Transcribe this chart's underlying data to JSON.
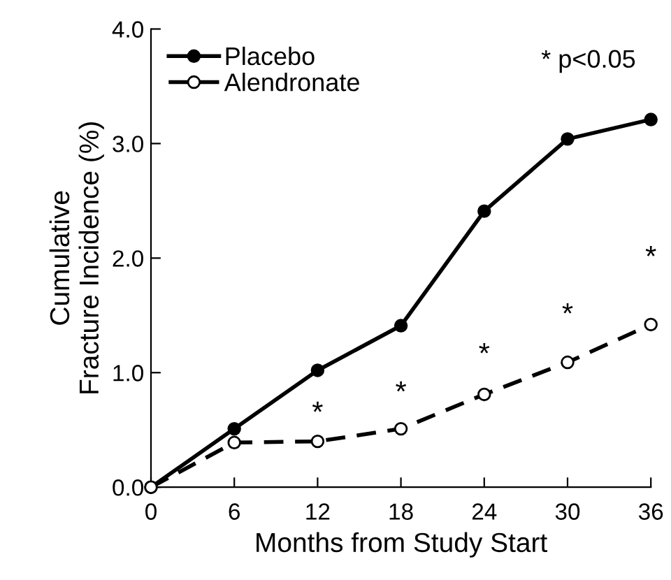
{
  "chart_data": {
    "type": "line",
    "xlabel": "Months from Study Start",
    "ylabel": "Cumulative\nFracture Incidence (%)",
    "x": [
      0,
      6,
      12,
      18,
      24,
      30,
      36
    ],
    "series": [
      {
        "name": "Placebo",
        "color": "#000000",
        "line_style": "solid",
        "marker": "circle",
        "values": [
          0,
          0.51,
          1.02,
          1.41,
          2.41,
          3.04,
          3.21
        ]
      },
      {
        "name": "Alendronate",
        "color": "#000000",
        "line_style": "dashed",
        "marker": "circle",
        "values": [
          0,
          0.39,
          0.4,
          0.51,
          0.81,
          1.09,
          1.42
        ]
      }
    ],
    "annotations": [
      "*",
      "*",
      "*",
      "*",
      "*",
      "* p<0.05"
    ],
    "xlim": [
      0,
      36
    ],
    "ylim": [
      0,
      4
    ],
    "xticks": [
      0,
      6,
      12,
      18,
      24,
      30,
      36
    ],
    "yticks": [
      {
        "value": 0,
        "label": "0.0"
      },
      {
        "value": 1,
        "label": "1.0"
      },
      {
        "value": 2,
        "label": "2.0"
      },
      {
        "value": 3,
        "label": "3.0"
      },
      {
        "value": 4,
        "label": "4.0"
      }
    ],
    "grid": false,
    "legend": "top left"
  }
}
